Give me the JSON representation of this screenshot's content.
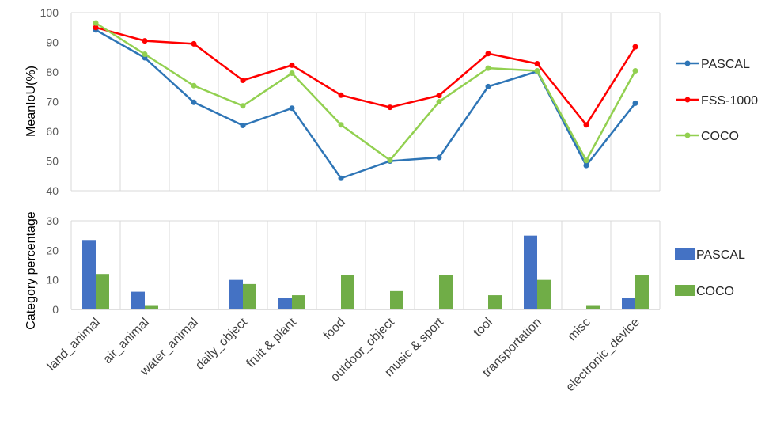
{
  "chart_data": [
    {
      "type": "line",
      "ylabel": "MeanIoU(%)",
      "ylim": [
        40,
        100
      ],
      "yticks": [
        40,
        50,
        60,
        70,
        80,
        90,
        100
      ],
      "grid": "vertical",
      "legend": "right",
      "series": [
        {
          "name": "PASCAL",
          "color": "#2E75B6",
          "values": [
            94.2,
            84.8,
            69.8,
            62.0,
            67.8,
            44.2,
            50.0,
            51.2,
            75.1,
            80.2,
            48.5,
            69.5
          ]
        },
        {
          "name": "FSS-1000",
          "color": "#FF0000",
          "values": [
            95.0,
            90.5,
            89.5,
            77.2,
            82.3,
            72.2,
            68.1,
            72.1,
            86.2,
            82.8,
            62.2,
            88.5
          ]
        },
        {
          "name": "COCO",
          "color": "#92D050",
          "values": [
            96.5,
            86.0,
            75.4,
            68.6,
            79.6,
            62.2,
            50.3,
            70.0,
            81.3,
            80.4,
            50.2,
            80.4
          ]
        }
      ]
    },
    {
      "type": "bar",
      "ylabel": "Category percentage",
      "ylim": [
        0,
        30
      ],
      "yticks": [
        0,
        10,
        20,
        30
      ],
      "grid": "vertical",
      "legend": "right",
      "series": [
        {
          "name": "PASCAL",
          "color": "#4472C4",
          "values": [
            23.5,
            6.0,
            0,
            10.0,
            4.0,
            0,
            0,
            0,
            0,
            25.0,
            0,
            4.0
          ]
        },
        {
          "name": "COCO",
          "color": "#70AD47",
          "values": [
            12.0,
            1.2,
            0,
            8.6,
            4.8,
            11.6,
            6.2,
            11.6,
            4.8,
            10.0,
            1.2,
            11.6
          ]
        }
      ]
    }
  ],
  "categories": [
    "land_animal",
    "air_animal",
    "water_animal",
    "daily_object",
    "fruit & plant",
    "food",
    "outdoor_object",
    "music & sport",
    "tool",
    "transportation",
    "misc",
    "electronic_device"
  ]
}
